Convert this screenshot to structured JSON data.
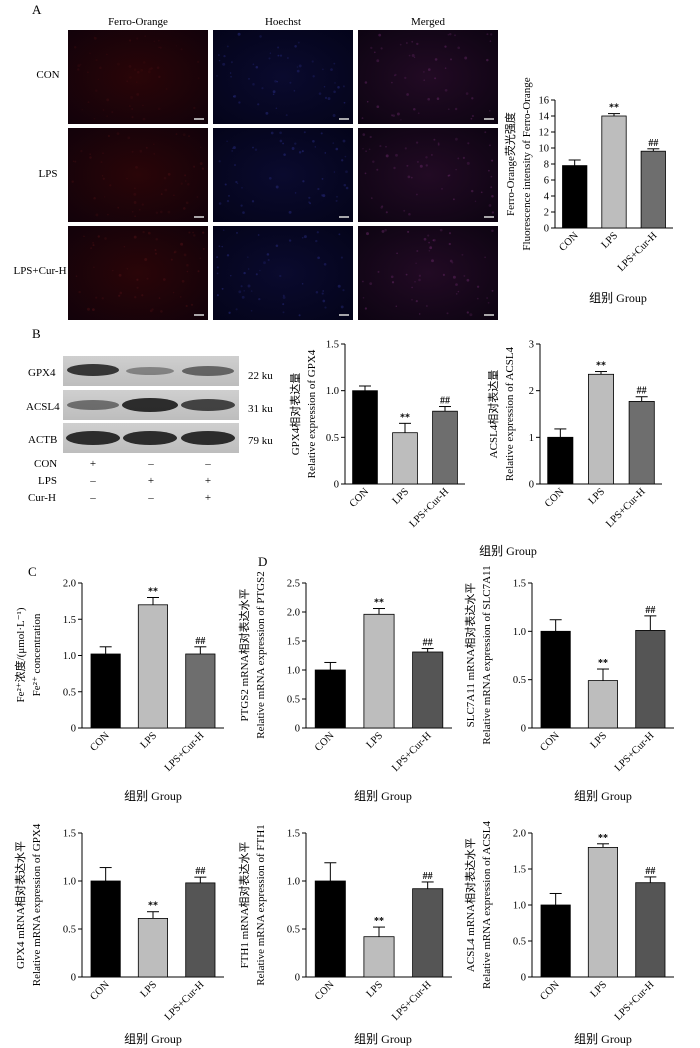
{
  "panel_labels": [
    "A",
    "B",
    "C",
    "D"
  ],
  "microscopy": {
    "columns": [
      "Ferro-Orange",
      "Hoechst",
      "Merged"
    ],
    "rows": [
      "CON",
      "LPS",
      "LPS+Cur-H"
    ]
  },
  "western_blot": {
    "proteins": [
      {
        "name": "GPX4",
        "size": "22 ku"
      },
      {
        "name": "ACSL4",
        "size": "31 ku"
      },
      {
        "name": "ACTB",
        "size": "79 ku"
      }
    ],
    "treatments": [
      {
        "name": "CON",
        "marks": [
          "+",
          "–",
          "–"
        ]
      },
      {
        "name": "LPS",
        "marks": [
          "–",
          "+",
          "+"
        ]
      },
      {
        "name": "Cur-H",
        "marks": [
          "–",
          "–",
          "+"
        ]
      }
    ]
  },
  "chart_data": [
    {
      "id": "chartA",
      "type": "bar",
      "categories": [
        "CON",
        "LPS",
        "LPS+Cur-H"
      ],
      "values": [
        7.8,
        14.0,
        9.6
      ],
      "errors": [
        0.7,
        0.3,
        0.3
      ],
      "annotations": [
        "",
        "**",
        "##"
      ],
      "ylabel": [
        "Ferro-Orange荧光强度",
        "Fluorescence intensity of Ferro-Orange"
      ],
      "xlabel": "组别 Group",
      "ylim": [
        0,
        16
      ],
      "yticks": [
        0,
        2,
        4,
        6,
        8,
        10,
        12,
        14,
        16
      ],
      "ytick_labels": [
        "0",
        "2",
        "4",
        "6",
        "8",
        "10",
        "12",
        "14",
        "16"
      ],
      "colors": [
        "#000000",
        "#bdbdbd",
        "#6e6e6e"
      ]
    },
    {
      "id": "chartB1",
      "type": "bar",
      "categories": [
        "CON",
        "LPS",
        "LPS+Cur-H"
      ],
      "values": [
        1.0,
        0.55,
        0.78
      ],
      "errors": [
        0.05,
        0.1,
        0.05
      ],
      "annotations": [
        "",
        "**",
        "##"
      ],
      "ylabel": [
        "GPX4相对表达量",
        "Relative expression of GPX4"
      ],
      "xlabel": "",
      "ylim": [
        0,
        1.5
      ],
      "yticks": [
        0,
        0.5,
        1.0,
        1.5
      ],
      "ytick_labels": [
        "0",
        "0.5",
        "1.0",
        "1.5"
      ],
      "colors": [
        "#000000",
        "#bdbdbd",
        "#6e6e6e"
      ]
    },
    {
      "id": "chartB2",
      "type": "bar",
      "categories": [
        "CON",
        "LPS",
        "LPS+Cur-H"
      ],
      "values": [
        1.0,
        2.35,
        1.77
      ],
      "errors": [
        0.18,
        0.06,
        0.1
      ],
      "annotations": [
        "",
        "**",
        "##"
      ],
      "ylabel": [
        "ACSL4相对表达量",
        "Relative expression of ACSL4"
      ],
      "xlabel": "",
      "ylim": [
        0,
        3
      ],
      "yticks": [
        0,
        1,
        2,
        3
      ],
      "ytick_labels": [
        "0",
        "1",
        "2",
        "3"
      ],
      "colors": [
        "#000000",
        "#bdbdbd",
        "#6e6e6e"
      ]
    },
    {
      "id": "chartC",
      "type": "bar",
      "categories": [
        "CON",
        "LPS",
        "LPS+Cur-H"
      ],
      "values": [
        1.02,
        1.7,
        1.02
      ],
      "errors": [
        0.1,
        0.1,
        0.1
      ],
      "annotations": [
        "",
        "**",
        "##"
      ],
      "ylabel": [
        "Fe²⁺浓度/(μmol·L⁻¹)",
        "Fe²⁺ concentration"
      ],
      "xlabel": "组别 Group",
      "ylim": [
        0,
        2.0
      ],
      "yticks": [
        0,
        0.5,
        1.0,
        1.5,
        2.0
      ],
      "ytick_labels": [
        "0",
        "0.5",
        "1.0",
        "1.5",
        "2.0"
      ],
      "colors": [
        "#000000",
        "#bdbdbd",
        "#6e6e6e"
      ]
    },
    {
      "id": "chartD1",
      "type": "bar",
      "categories": [
        "CON",
        "LPS",
        "LPS+Cur-H"
      ],
      "values": [
        1.0,
        1.96,
        1.31
      ],
      "errors": [
        0.13,
        0.1,
        0.06
      ],
      "annotations": [
        "",
        "**",
        "##"
      ],
      "ylabel": [
        "PTGS2 mRNA相对表达水平",
        "Relative mRNA expression of PTGS2"
      ],
      "xlabel": "组别 Group",
      "ylim": [
        0,
        2.5
      ],
      "yticks": [
        0,
        0.5,
        1.0,
        1.5,
        2.0,
        2.5
      ],
      "ytick_labels": [
        "0",
        "0.5",
        "1.0",
        "1.5",
        "2.0",
        "2.5"
      ],
      "colors": [
        "#000000",
        "#bdbdbd",
        "#555555"
      ]
    },
    {
      "id": "chartD2",
      "type": "bar",
      "categories": [
        "CON",
        "LPS",
        "LPS+Cur-H"
      ],
      "values": [
        1.0,
        0.49,
        1.01
      ],
      "errors": [
        0.12,
        0.12,
        0.15
      ],
      "annotations": [
        "",
        "**",
        "##"
      ],
      "ylabel": [
        "SLC7A11 mRNA相对表达水平",
        "Relative mRNA expression of SLC7A11"
      ],
      "xlabel": "组别 Group",
      "ylim": [
        0,
        1.5
      ],
      "yticks": [
        0,
        0.5,
        1.0,
        1.5
      ],
      "ytick_labels": [
        "0",
        "0.5",
        "1.0",
        "1.5"
      ],
      "colors": [
        "#000000",
        "#bdbdbd",
        "#555555"
      ]
    },
    {
      "id": "chartD3",
      "type": "bar",
      "categories": [
        "CON",
        "LPS",
        "LPS+Cur-H"
      ],
      "values": [
        1.0,
        0.61,
        0.98
      ],
      "errors": [
        0.14,
        0.07,
        0.06
      ],
      "annotations": [
        "",
        "**",
        "##"
      ],
      "ylabel": [
        "GPX4 mRNA相对表达水平",
        "Relative mRNA expression of GPX4"
      ],
      "xlabel": "组别 Group",
      "ylim": [
        0,
        1.5
      ],
      "yticks": [
        0,
        0.5,
        1.0,
        1.5
      ],
      "ytick_labels": [
        "0",
        "0.5",
        "1.0",
        "1.5"
      ],
      "colors": [
        "#000000",
        "#bdbdbd",
        "#555555"
      ]
    },
    {
      "id": "chartD4",
      "type": "bar",
      "categories": [
        "CON",
        "LPS",
        "LPS+Cur-H"
      ],
      "values": [
        1.0,
        0.42,
        0.92
      ],
      "errors": [
        0.19,
        0.1,
        0.07
      ],
      "annotations": [
        "",
        "**",
        "##"
      ],
      "ylabel": [
        "FTH1 mRNA相对表达水平",
        "Relative mRNA expression of FTH1"
      ],
      "xlabel": "组别 Group",
      "ylim": [
        0,
        1.5
      ],
      "yticks": [
        0,
        0.5,
        1.0,
        1.5
      ],
      "ytick_labels": [
        "0",
        "0.5",
        "1.0",
        "1.5"
      ],
      "colors": [
        "#000000",
        "#bdbdbd",
        "#555555"
      ]
    },
    {
      "id": "chartD5",
      "type": "bar",
      "categories": [
        "CON",
        "LPS",
        "LPS+Cur-H"
      ],
      "values": [
        1.0,
        1.8,
        1.31
      ],
      "errors": [
        0.16,
        0.05,
        0.08
      ],
      "annotations": [
        "",
        "**",
        "##"
      ],
      "ylabel": [
        "ACSL4 mRNA相对表达水平",
        "Relative mRNA expression of ACSL4"
      ],
      "xlabel": "组别 Group",
      "ylim": [
        0,
        2.0
      ],
      "yticks": [
        0,
        0.5,
        1.0,
        1.5,
        2.0
      ],
      "ytick_labels": [
        "0",
        "0.5",
        "1.0",
        "1.5",
        "2.0"
      ],
      "colors": [
        "#000000",
        "#bdbdbd",
        "#555555"
      ]
    }
  ],
  "shared_xlabel": "组别 Group"
}
